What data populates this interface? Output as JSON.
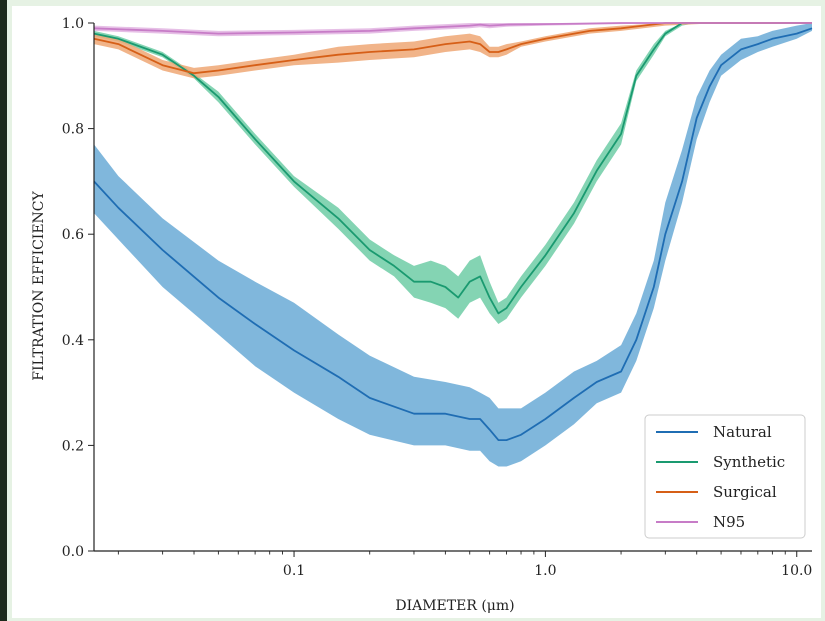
{
  "chart_data": {
    "type": "line",
    "title": "",
    "xlabel": "DIAMETER (μm)",
    "ylabel": "FILTRATION EFFICIENCY",
    "xscale": "log",
    "xlim": [
      0.016,
      11.5
    ],
    "ylim": [
      0.0,
      1.0
    ],
    "xticks": [
      0.1,
      1.0,
      10.0
    ],
    "xtick_labels": [
      "0.1",
      "1.0",
      "10.0"
    ],
    "yticks": [
      0.0,
      0.2,
      0.4,
      0.6,
      0.8,
      1.0
    ],
    "ytick_labels": [
      "0.0",
      "0.2",
      "0.4",
      "0.6",
      "0.8",
      "1.0"
    ],
    "grid": false,
    "legend_position": "bottom-right",
    "series": [
      {
        "name": "Natural",
        "color": "#1f6db3",
        "band_color": "#6aaad6",
        "x": [
          0.016,
          0.02,
          0.03,
          0.05,
          0.07,
          0.1,
          0.15,
          0.2,
          0.3,
          0.4,
          0.5,
          0.55,
          0.6,
          0.65,
          0.7,
          0.8,
          1.0,
          1.3,
          1.6,
          2.0,
          2.3,
          2.7,
          3.0,
          3.5,
          4.0,
          4.5,
          5.0,
          6.0,
          7.0,
          8.0,
          10.0,
          11.5
        ],
        "y": [
          0.7,
          0.65,
          0.57,
          0.48,
          0.43,
          0.38,
          0.33,
          0.29,
          0.26,
          0.26,
          0.25,
          0.25,
          0.23,
          0.21,
          0.21,
          0.22,
          0.25,
          0.29,
          0.32,
          0.34,
          0.4,
          0.5,
          0.6,
          0.7,
          0.82,
          0.88,
          0.92,
          0.95,
          0.96,
          0.97,
          0.98,
          0.99
        ],
        "lower": [
          0.64,
          0.59,
          0.5,
          0.41,
          0.35,
          0.3,
          0.25,
          0.22,
          0.2,
          0.2,
          0.19,
          0.19,
          0.17,
          0.16,
          0.16,
          0.17,
          0.2,
          0.24,
          0.28,
          0.3,
          0.36,
          0.46,
          0.55,
          0.66,
          0.78,
          0.85,
          0.9,
          0.93,
          0.945,
          0.955,
          0.97,
          0.985
        ],
        "upper": [
          0.77,
          0.71,
          0.63,
          0.55,
          0.51,
          0.47,
          0.41,
          0.37,
          0.33,
          0.32,
          0.31,
          0.3,
          0.29,
          0.27,
          0.27,
          0.27,
          0.3,
          0.34,
          0.36,
          0.39,
          0.45,
          0.55,
          0.66,
          0.76,
          0.86,
          0.91,
          0.94,
          0.97,
          0.975,
          0.985,
          0.995,
          1.0
        ]
      },
      {
        "name": "Synthetic",
        "color": "#1a9a70",
        "band_color": "#6fcca6",
        "x": [
          0.016,
          0.02,
          0.03,
          0.04,
          0.05,
          0.07,
          0.1,
          0.15,
          0.2,
          0.25,
          0.3,
          0.35,
          0.4,
          0.45,
          0.5,
          0.55,
          0.6,
          0.65,
          0.7,
          0.8,
          1.0,
          1.3,
          1.6,
          2.0,
          2.3,
          2.7,
          3.0,
          3.5,
          4.0,
          6.0,
          11.5
        ],
        "y": [
          0.98,
          0.97,
          0.94,
          0.9,
          0.86,
          0.78,
          0.7,
          0.63,
          0.57,
          0.54,
          0.51,
          0.51,
          0.5,
          0.48,
          0.51,
          0.52,
          0.48,
          0.45,
          0.46,
          0.5,
          0.56,
          0.64,
          0.72,
          0.79,
          0.9,
          0.95,
          0.98,
          1.0,
          1.0,
          1.0,
          1.0
        ],
        "lower": [
          0.975,
          0.965,
          0.935,
          0.895,
          0.85,
          0.77,
          0.69,
          0.61,
          0.55,
          0.52,
          0.48,
          0.47,
          0.46,
          0.44,
          0.47,
          0.48,
          0.45,
          0.43,
          0.44,
          0.48,
          0.54,
          0.62,
          0.7,
          0.77,
          0.89,
          0.94,
          0.975,
          0.995,
          1.0,
          1.0,
          1.0
        ],
        "upper": [
          0.985,
          0.975,
          0.945,
          0.905,
          0.87,
          0.79,
          0.71,
          0.65,
          0.59,
          0.56,
          0.54,
          0.55,
          0.54,
          0.52,
          0.55,
          0.56,
          0.51,
          0.47,
          0.48,
          0.52,
          0.58,
          0.66,
          0.74,
          0.81,
          0.91,
          0.96,
          0.985,
          1.0,
          1.0,
          1.0,
          1.0
        ]
      },
      {
        "name": "Surgical",
        "color": "#d65f17",
        "band_color": "#eea774",
        "x": [
          0.016,
          0.02,
          0.03,
          0.04,
          0.05,
          0.07,
          0.1,
          0.15,
          0.2,
          0.3,
          0.4,
          0.5,
          0.55,
          0.6,
          0.65,
          0.7,
          0.8,
          1.0,
          1.5,
          2.0,
          3.0,
          5.0,
          11.5
        ],
        "y": [
          0.97,
          0.96,
          0.92,
          0.905,
          0.91,
          0.92,
          0.93,
          0.94,
          0.945,
          0.95,
          0.96,
          0.965,
          0.96,
          0.945,
          0.945,
          0.95,
          0.96,
          0.97,
          0.985,
          0.99,
          1.0,
          1.0,
          1.0
        ],
        "lower": [
          0.96,
          0.95,
          0.91,
          0.895,
          0.9,
          0.91,
          0.92,
          0.925,
          0.93,
          0.935,
          0.945,
          0.95,
          0.945,
          0.935,
          0.935,
          0.94,
          0.955,
          0.965,
          0.98,
          0.985,
          0.995,
          1.0,
          1.0
        ],
        "upper": [
          0.98,
          0.97,
          0.93,
          0.915,
          0.92,
          0.93,
          0.94,
          0.955,
          0.96,
          0.965,
          0.975,
          0.98,
          0.975,
          0.955,
          0.955,
          0.96,
          0.965,
          0.975,
          0.99,
          0.995,
          1.0,
          1.0,
          1.0
        ]
      },
      {
        "name": "N95",
        "color": "#c77cc7",
        "band_color": "#e2b4e2",
        "x": [
          0.016,
          0.03,
          0.05,
          0.1,
          0.2,
          0.3,
          0.5,
          0.55,
          0.6,
          0.7,
          1.0,
          2.0,
          5.0,
          11.5
        ],
        "y": [
          0.99,
          0.985,
          0.98,
          0.982,
          0.985,
          0.99,
          0.995,
          0.997,
          0.995,
          0.997,
          0.998,
          1.0,
          1.0,
          1.0
        ],
        "lower": [
          0.985,
          0.98,
          0.975,
          0.977,
          0.98,
          0.985,
          0.99,
          0.992,
          0.99,
          0.993,
          0.995,
          0.998,
          1.0,
          1.0
        ],
        "upper": [
          0.995,
          0.99,
          0.985,
          0.987,
          0.99,
          0.995,
          1.0,
          1.0,
          1.0,
          1.0,
          1.0,
          1.0,
          1.0,
          1.0
        ]
      }
    ]
  }
}
